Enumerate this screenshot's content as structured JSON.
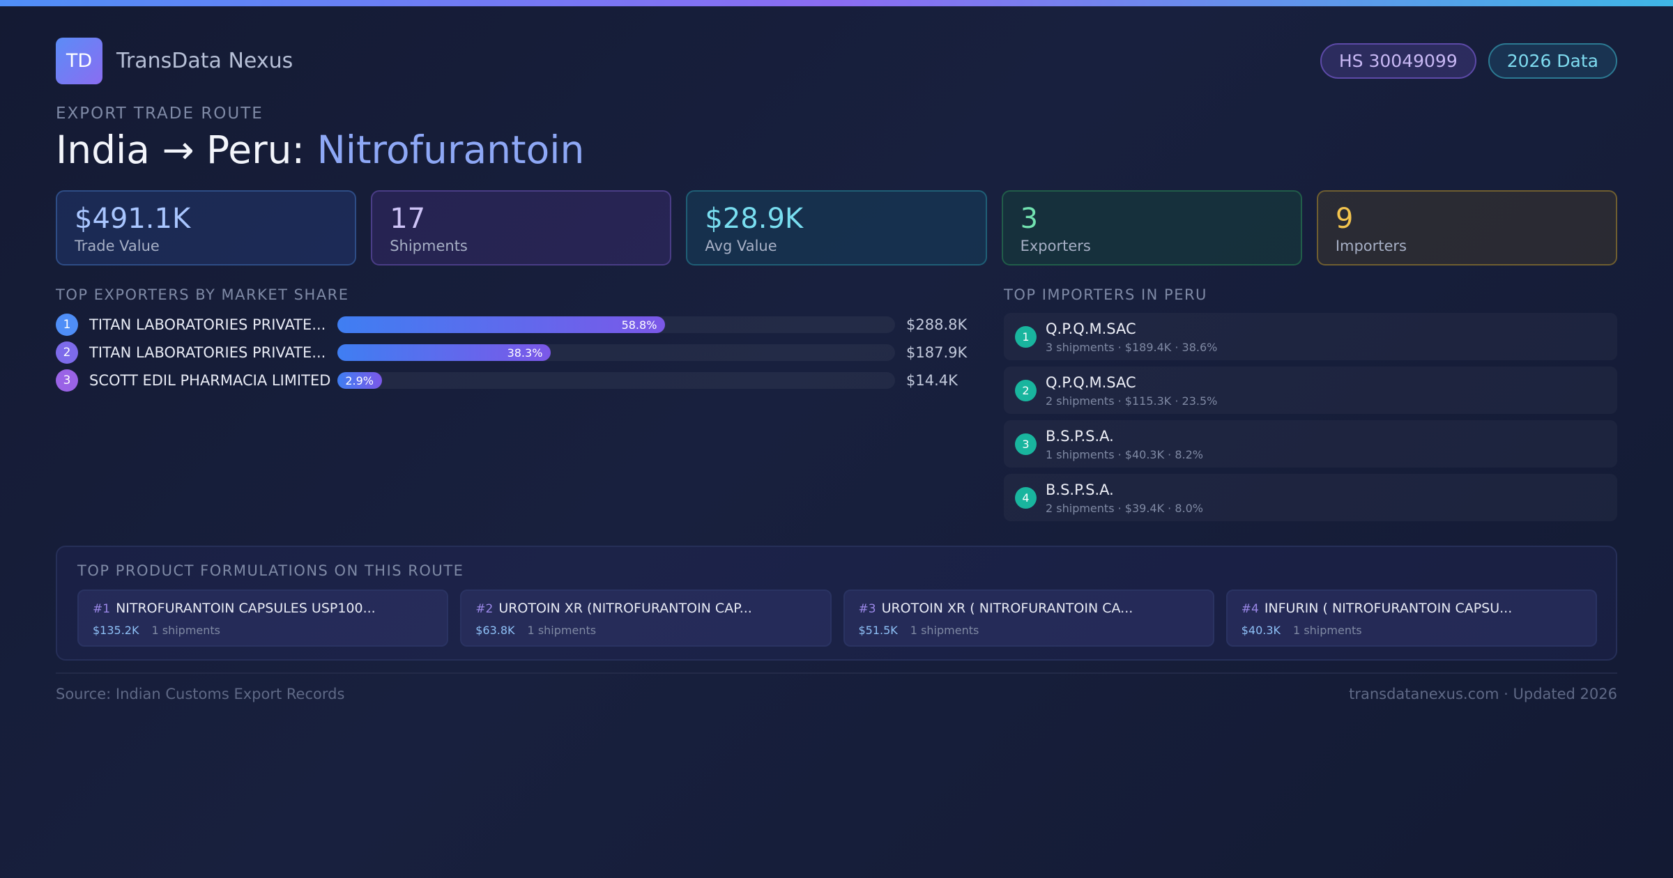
{
  "header": {
    "logo_text": "TD",
    "brand_name": "TransData Nexus",
    "badges": {
      "hs_code": "HS 30049099",
      "year": "2026 Data"
    }
  },
  "route": {
    "eyebrow": "EXPORT TRADE ROUTE",
    "title_prefix": "India → Peru: ",
    "title_product": "Nitrofurantoin"
  },
  "stats": [
    {
      "value": "$491.1K",
      "label": "Trade Value"
    },
    {
      "value": "17",
      "label": "Shipments"
    },
    {
      "value": "$28.9K",
      "label": "Avg Value"
    },
    {
      "value": "3",
      "label": "Exporters"
    },
    {
      "value": "9",
      "label": "Importers"
    }
  ],
  "exporters": {
    "heading": "TOP EXPORTERS BY MARKET SHARE",
    "items": [
      {
        "rank": "1",
        "name": "TITAN LABORATORIES PRIVATE...",
        "share": 58.8,
        "share_label": "58.8%",
        "value": "$288.8K",
        "dot_color": "#4f8ef7"
      },
      {
        "rank": "2",
        "name": "TITAN LABORATORIES PRIVATE...",
        "share": 38.3,
        "share_label": "38.3%",
        "value": "$187.9K",
        "dot_color": "#7d6bea"
      },
      {
        "rank": "3",
        "name": "SCOTT EDIL PHARMACIA LIMITED",
        "share": 2.9,
        "share_label": "2.9%",
        "value": "$14.4K",
        "dot_color": "#9a63e6"
      }
    ]
  },
  "importers": {
    "heading": "TOP IMPORTERS IN PERU",
    "items": [
      {
        "rank": "1",
        "name": "Q.P.Q.M.SAC",
        "meta": "3 shipments · $189.4K · 38.6%"
      },
      {
        "rank": "2",
        "name": "Q.P.Q.M.SAC",
        "meta": "2 shipments · $115.3K · 23.5%"
      },
      {
        "rank": "3",
        "name": "B.S.P.S.A.",
        "meta": "1 shipments · $40.3K · 8.2%"
      },
      {
        "rank": "4",
        "name": "B.S.P.S.A.",
        "meta": "2 shipments · $39.4K · 8.0%"
      }
    ]
  },
  "products": {
    "heading": "TOP PRODUCT FORMULATIONS ON THIS ROUTE",
    "items": [
      {
        "num": "#1",
        "name": "NITROFURANTOIN CAPSULES USP100...",
        "value": "$135.2K",
        "shipments": "1 shipments"
      },
      {
        "num": "#2",
        "name": "UROTOIN XR (NITROFURANTOIN CAP...",
        "value": "$63.8K",
        "shipments": "1 shipments"
      },
      {
        "num": "#3",
        "name": "UROTOIN XR ( NITROFURANTOIN CA...",
        "value": "$51.5K",
        "shipments": "1 shipments"
      },
      {
        "num": "#4",
        "name": "INFURIN ( NITROFURANTOIN CAPSU...",
        "value": "$40.3K",
        "shipments": "1 shipments"
      }
    ]
  },
  "footer": {
    "source": "Source: Indian Customs Export Records",
    "site": "transdatanexus.com · Updated 2026"
  }
}
